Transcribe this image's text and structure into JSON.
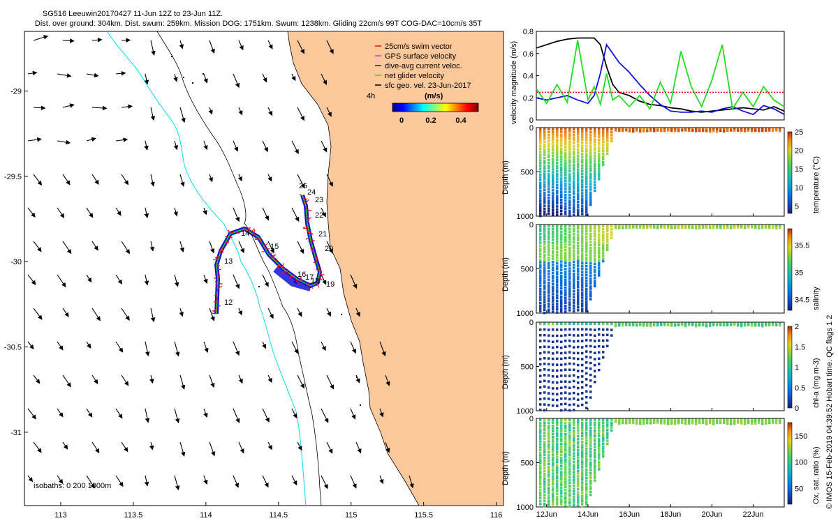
{
  "header": {
    "line1": "SG516 Leeuwin20170427 11-Jun 12Z to 23-Jun 11Z.",
    "line2": "Dist. over ground: 304km. Dist. swum: 259km. Mission DOG: 1751km. Swum: 1238km. Gliding 22cm/s 99T COG-DAC=10cm/s 35T"
  },
  "side_label": "© IMOS 15-Feb-2019 04:39:52 Hobart time. QC flags 1  2",
  "colors": {
    "land": "#FAC89A",
    "isobath_200": "#00E0F0",
    "swim_vector": "#EE1111",
    "gps_velocity": "#DD33DD",
    "current": "#1111DD",
    "net_velocity": "#22DD22",
    "threshold": "#EE0000",
    "black": "#000000"
  },
  "map": {
    "legend": [
      {
        "label": "25cm/s swim vector",
        "color": "#EE1111"
      },
      {
        "label": "GPS surface velocity",
        "color": "#DD33DD"
      },
      {
        "label": "dive-avg current veloc.",
        "color": "#1111DD"
      },
      {
        "label": "net glider velocity",
        "color": "#22DD22"
      },
      {
        "label": "sfc geo. vel. 23-Jun-2017",
        "color": "#000000"
      }
    ],
    "colorbar_label": "4h",
    "colorbar_unit": "(m/s)",
    "colorbar_ticks": [
      "0",
      "0.2",
      "0.4"
    ],
    "isobath_note": "isobaths: 0   200  1000m",
    "day_labels": [
      "12",
      "13",
      "14",
      "15",
      "16",
      "17",
      "18",
      "19",
      "20",
      "21",
      "22",
      "23",
      "24",
      "25"
    ]
  },
  "chart_data": [
    {
      "type": "map",
      "xlim": [
        112.75,
        116.05
      ],
      "ylim": [
        -31.43,
        -28.65
      ],
      "x_ticks": [
        "113",
        "113.5",
        "114",
        "114.5",
        "115",
        "115.5",
        "116"
      ],
      "y_ticks": [
        "-29",
        "-29.5",
        "-30",
        "-30.5",
        "-31"
      ],
      "track_days": [
        {
          "day": "12",
          "lon": 114.12,
          "lat": -30.12
        },
        {
          "day": "13",
          "lon": 114.07,
          "lat": -29.98
        },
        {
          "day": "14",
          "lon": 114.25,
          "lat": -29.9
        },
        {
          "day": "15",
          "lon": 114.47,
          "lat": -29.95
        },
        {
          "day": "16",
          "lon": 114.61,
          "lat": -30.03
        },
        {
          "day": "17",
          "lon": 114.65,
          "lat": -30.03
        },
        {
          "day": "18",
          "lon": 114.71,
          "lat": -30.05
        },
        {
          "day": "19",
          "lon": 114.82,
          "lat": -30.05
        },
        {
          "day": "20",
          "lon": 114.79,
          "lat": -29.95
        },
        {
          "day": "21",
          "lon": 114.77,
          "lat": -29.88
        },
        {
          "day": "22",
          "lon": 114.76,
          "lat": -29.72
        },
        {
          "day": "23",
          "lon": 114.75,
          "lat": -29.61
        },
        {
          "day": "24",
          "lon": 114.73,
          "lat": -29.59
        },
        {
          "day": "25",
          "lon": 114.69,
          "lat": -29.57
        }
      ]
    },
    {
      "type": "line",
      "title": "",
      "ylabel": "velocity magnitude (m/s)",
      "ylim": [
        0,
        0.8
      ],
      "y_ticks": [
        "0",
        "0.2",
        "0.4",
        "0.6",
        "0.8"
      ],
      "x": [
        11.5,
        12,
        12.5,
        13,
        13.5,
        14,
        14.3,
        14.6,
        14.9,
        15.2,
        15.5,
        16,
        16.5,
        17,
        17.5,
        18,
        18.5,
        19,
        19.5,
        20,
        20.5,
        21,
        21.5,
        22,
        22.5,
        23,
        23.5
      ],
      "series": [
        {
          "name": "sfc geo. vel.",
          "color": "#000000",
          "values": [
            0.65,
            0.68,
            0.71,
            0.73,
            0.74,
            0.74,
            0.74,
            0.68,
            0.48,
            0.32,
            0.25,
            0.22,
            0.17,
            0.14,
            0.13,
            0.11,
            0.1,
            0.08,
            0.07,
            0.08,
            0.09,
            0.1,
            0.11,
            0.1,
            0.09,
            0.12,
            0.08
          ]
        },
        {
          "name": "dive-avg current",
          "color": "#1111DD",
          "values": [
            0.2,
            0.18,
            0.2,
            0.22,
            0.18,
            0.15,
            0.22,
            0.42,
            0.68,
            0.6,
            0.52,
            0.43,
            0.32,
            0.22,
            0.14,
            0.08,
            0.07,
            0.07,
            0.08,
            0.07,
            0.1,
            0.12,
            0.08,
            0.05,
            0.13,
            0.1,
            0.05
          ]
        },
        {
          "name": "net glider velocity",
          "color": "#22DD22",
          "values": [
            0.28,
            0.15,
            0.32,
            0.16,
            0.72,
            0.18,
            0.3,
            0.14,
            0.42,
            0.18,
            0.22,
            0.12,
            0.22,
            0.1,
            0.34,
            0.15,
            0.62,
            0.3,
            0.12,
            0.36,
            0.68,
            0.1,
            0.25,
            0.12,
            0.3,
            0.18,
            0.12
          ]
        },
        {
          "name": "swim vector",
          "color": "#EE0000",
          "values": [
            0.25,
            0.25,
            0.25,
            0.25,
            0.25,
            0.25,
            0.25,
            0.25,
            0.25,
            0.25,
            0.25,
            0.25,
            0.25,
            0.25,
            0.25,
            0.25,
            0.25,
            0.25,
            0.25,
            0.25,
            0.25,
            0.25,
            0.25,
            0.25,
            0.25,
            0.25,
            0.25
          ]
        }
      ]
    },
    {
      "type": "heatmap",
      "ylabel": "Depth (m)",
      "ylim": [
        0,
        1000
      ],
      "y_ticks": [
        "0",
        "500",
        "1000"
      ],
      "colorbar_label": "temperature (°C)",
      "color_range": [
        3,
        25
      ],
      "colorbar_ticks": [
        "5",
        "10",
        "15",
        "20",
        "25"
      ]
    },
    {
      "type": "heatmap",
      "ylabel": "Depth (m)",
      "ylim": [
        0,
        1000
      ],
      "y_ticks": [
        "0",
        "500",
        "1000"
      ],
      "colorbar_label": "salinity",
      "color_range": [
        34.3,
        35.8
      ],
      "colorbar_ticks": [
        "34.5",
        "35",
        "35.5"
      ]
    },
    {
      "type": "heatmap",
      "ylabel": "Depth (m)",
      "ylim": [
        0,
        1000
      ],
      "y_ticks": [
        "0",
        "500",
        "1000"
      ],
      "colorbar_label": "chl-a (mg m-3)",
      "color_range": [
        0,
        2
      ],
      "colorbar_ticks": [
        "0",
        "0.5",
        "1",
        "1.5",
        "2"
      ]
    },
    {
      "type": "heatmap",
      "ylabel": "Depth (m)",
      "ylim": [
        0,
        1000
      ],
      "y_ticks": [
        "0",
        "500",
        "1000"
      ],
      "colorbar_label": "Ox. sat. ratio (%)",
      "color_range": [
        20,
        175
      ],
      "colorbar_ticks": [
        "50",
        "100",
        "150"
      ],
      "x_ticks": [
        "12Jun",
        "14Jun",
        "16Jun",
        "18Jun",
        "20Jun",
        "22Jun"
      ]
    }
  ]
}
